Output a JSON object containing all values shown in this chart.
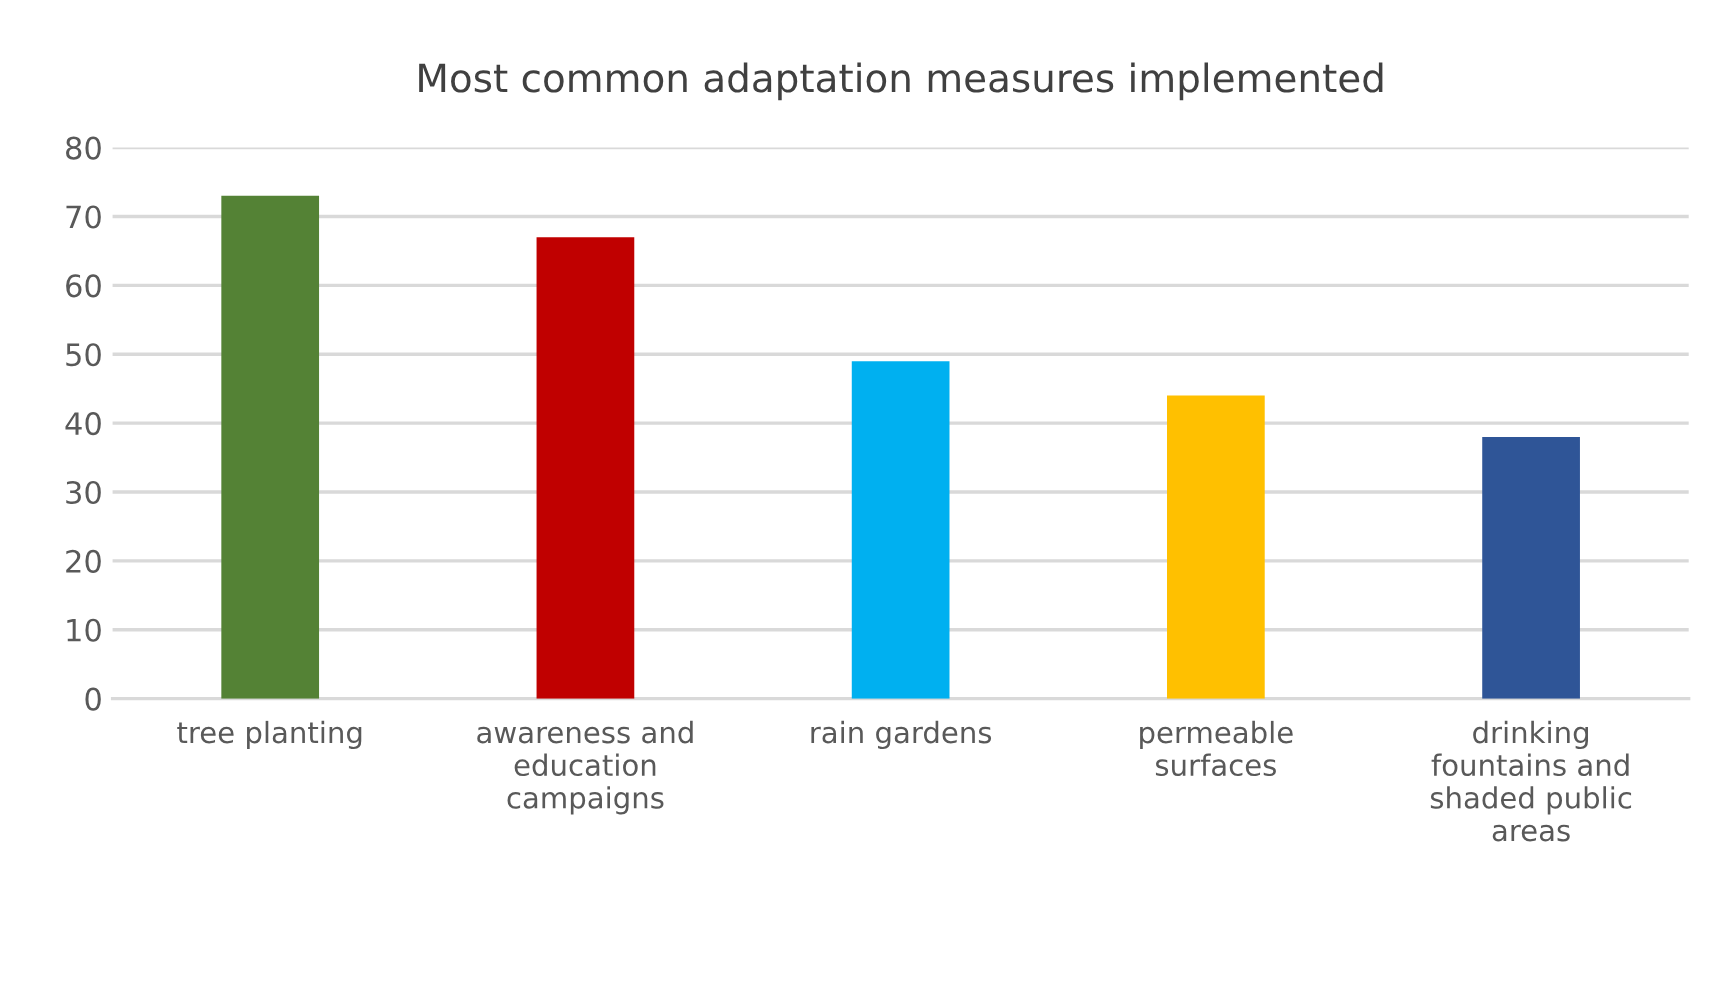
{
  "chart_data": {
    "type": "bar",
    "title": "Most common adaptation measures implemented",
    "categories": [
      "tree planting",
      "awareness and\neducation\ncampaigns",
      "rain gardens",
      "permeable\nsurfaces",
      "drinking\nfountains and\nshaded public\nareas"
    ],
    "values": [
      73,
      67,
      49,
      44,
      38
    ],
    "colors": [
      "#548235",
      "#c00000",
      "#00b0f0",
      "#ffc000",
      "#2f5597"
    ],
    "ylim": [
      0,
      80
    ],
    "yticks": [
      0,
      10,
      20,
      30,
      40,
      50,
      60,
      70,
      80
    ],
    "grid": "y",
    "legend": false
  }
}
